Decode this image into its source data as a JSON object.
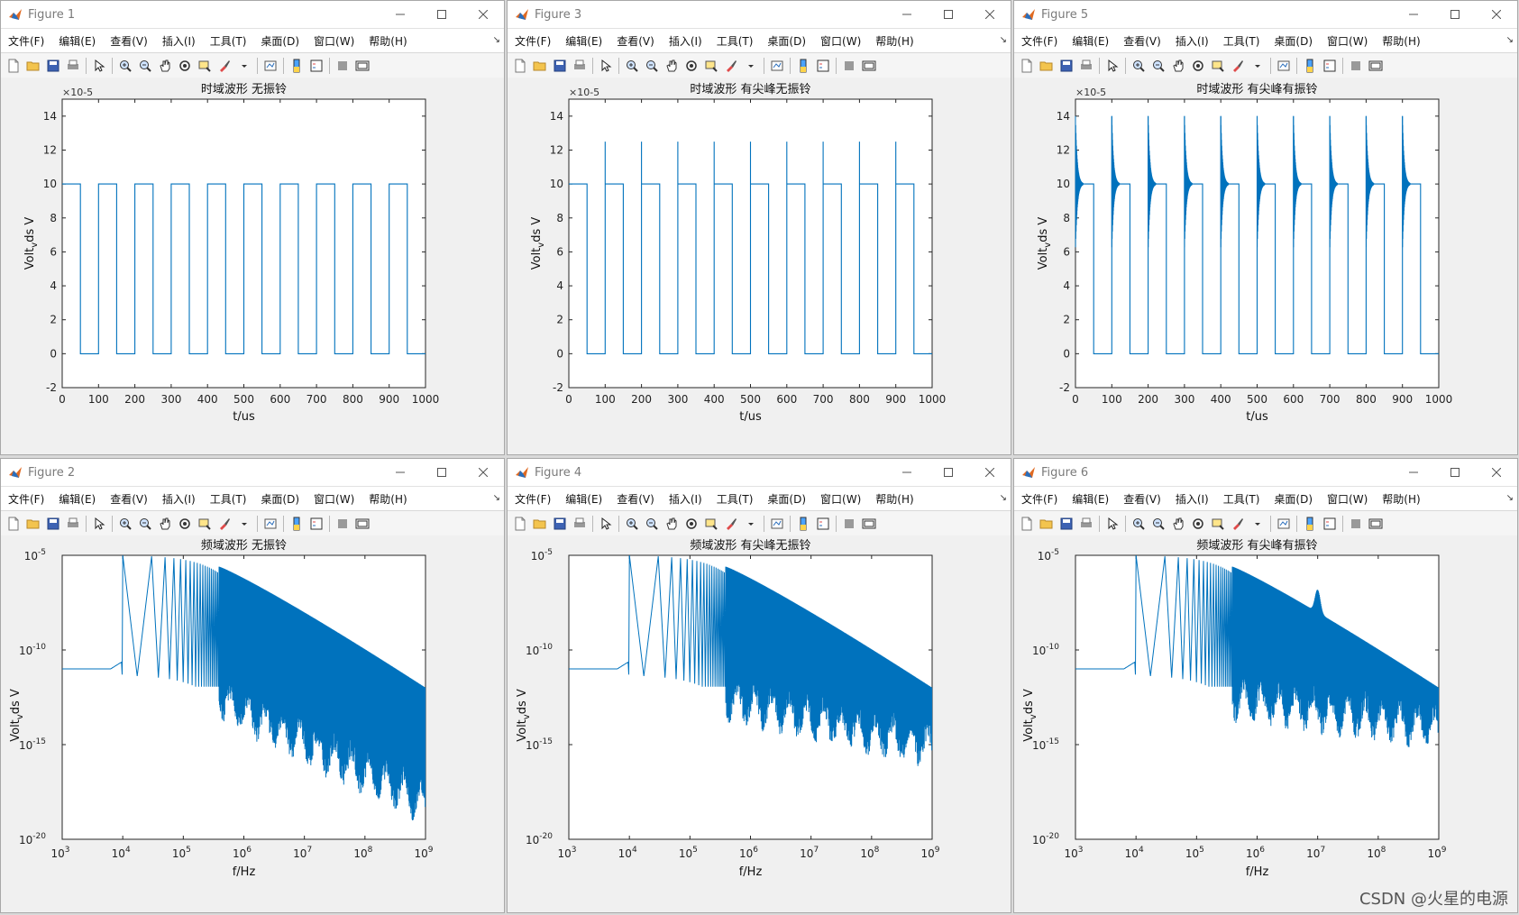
{
  "menu": [
    "文件(F)",
    "编辑(E)",
    "查看(V)",
    "插入(I)",
    "工具(T)",
    "桌面(D)",
    "窗口(W)",
    "帮助(H)"
  ],
  "windows": [
    {
      "title": "Figure 1",
      "chart_data": {
        "type": "line",
        "title": "时域波形 无振铃",
        "xlabel": "t/us",
        "ylabel_main": "Volt",
        "ylabel_sub": "v",
        "ylabel_tail": "ds V",
        "y_exponent": "×10-5",
        "xlim": [
          0,
          1000
        ],
        "ylim": [
          -2,
          15
        ],
        "xticks": [
          "0",
          "100",
          "200",
          "300",
          "400",
          "500",
          "600",
          "700",
          "800",
          "900",
          "1000"
        ],
        "yticks": [
          "-2",
          "0",
          "2",
          "4",
          "6",
          "8",
          "10",
          "12",
          "14"
        ],
        "y_scale": "linear",
        "series": [
          {
            "high": 10,
            "low": 0,
            "period": 100,
            "duty": 0.5,
            "first_rise": 0,
            "spike_peak": null,
            "ringing": false
          }
        ]
      }
    },
    {
      "title": "Figure 3",
      "chart_data": {
        "type": "line",
        "title": "时域波形 有尖峰无振铃",
        "xlabel": "t/us",
        "ylabel_main": "Volt",
        "ylabel_sub": "v",
        "ylabel_tail": "ds V",
        "y_exponent": "×10-5",
        "xlim": [
          0,
          1000
        ],
        "ylim": [
          -2,
          15
        ],
        "xticks": [
          "0",
          "100",
          "200",
          "300",
          "400",
          "500",
          "600",
          "700",
          "800",
          "900",
          "1000"
        ],
        "yticks": [
          "-2",
          "0",
          "2",
          "4",
          "6",
          "8",
          "10",
          "12",
          "14"
        ],
        "y_scale": "linear",
        "series": [
          {
            "high": 10,
            "low": 0,
            "period": 100,
            "duty": 0.5,
            "first_rise": 0,
            "spike_peak": 12.5,
            "ringing": false
          }
        ]
      }
    },
    {
      "title": "Figure 5",
      "chart_data": {
        "type": "line",
        "title": "时域波形 有尖峰有振铃",
        "xlabel": "t/us",
        "ylabel_main": "Volt",
        "ylabel_sub": "v",
        "ylabel_tail": "ds V",
        "y_exponent": "×10-5",
        "xlim": [
          0,
          1000
        ],
        "ylim": [
          -2,
          15
        ],
        "xticks": [
          "0",
          "100",
          "200",
          "300",
          "400",
          "500",
          "600",
          "700",
          "800",
          "900",
          "1000"
        ],
        "yticks": [
          "-2",
          "0",
          "2",
          "4",
          "6",
          "8",
          "10",
          "12",
          "14"
        ],
        "y_scale": "linear",
        "series": [
          {
            "high": 10,
            "low": 0,
            "period": 100,
            "duty": 0.5,
            "first_rise": 0,
            "spike_peak": 14,
            "ringing": true
          }
        ]
      }
    },
    {
      "title": "Figure 2",
      "chart_data": {
        "type": "line",
        "title": "频域波形 无振铃",
        "xlabel": "f/Hz",
        "ylabel_main": "Volt",
        "ylabel_sub": "v",
        "ylabel_tail": "ds V",
        "x_scale": "log",
        "y_scale": "log",
        "xlim": [
          1000,
          1000000000
        ],
        "ylim": [
          1e-20,
          1e-05
        ],
        "xticks": [
          "3",
          "4",
          "5",
          "6",
          "7",
          "8",
          "9"
        ],
        "yticks": [
          "-20",
          "-15",
          "-10",
          "-5"
        ],
        "tick_base": "10",
        "series": [
          {
            "baseline": 1e-11,
            "fundamental_hz": 10000,
            "peak": 1e-05,
            "envelope_top_end": 1e-12,
            "floor_end": 1e-18,
            "resonance_hz": null
          }
        ]
      }
    },
    {
      "title": "Figure 4",
      "chart_data": {
        "type": "line",
        "title": "频域波形 有尖峰无振铃",
        "xlabel": "f/Hz",
        "ylabel_main": "Volt",
        "ylabel_sub": "v",
        "ylabel_tail": "ds V",
        "x_scale": "log",
        "y_scale": "log",
        "xlim": [
          1000,
          1000000000
        ],
        "ylim": [
          1e-20,
          1e-05
        ],
        "xticks": [
          "3",
          "4",
          "5",
          "6",
          "7",
          "8",
          "9"
        ],
        "yticks": [
          "-20",
          "-15",
          "-10",
          "-5"
        ],
        "tick_base": "10",
        "series": [
          {
            "baseline": 1e-11,
            "fundamental_hz": 10000,
            "peak": 1e-05,
            "envelope_top_end": 1e-12,
            "floor_end": 1e-15,
            "resonance_hz": null
          }
        ]
      }
    },
    {
      "title": "Figure 6",
      "chart_data": {
        "type": "line",
        "title": "频域波形 有尖峰有振铃",
        "xlabel": "f/Hz",
        "ylabel_main": "Volt",
        "ylabel_sub": "v",
        "ylabel_tail": "ds V",
        "x_scale": "log",
        "y_scale": "log",
        "xlim": [
          1000,
          1000000000
        ],
        "ylim": [
          1e-20,
          1e-05
        ],
        "xticks": [
          "3",
          "4",
          "5",
          "6",
          "7",
          "8",
          "9"
        ],
        "yticks": [
          "-20",
          "-15",
          "-10",
          "-5"
        ],
        "tick_base": "10",
        "series": [
          {
            "baseline": 1e-11,
            "fundamental_hz": 10000,
            "peak": 1e-05,
            "envelope_top_end": 1e-12,
            "floor_end": 1e-14,
            "resonance_hz": 10000000
          }
        ]
      }
    }
  ],
  "watermark": "CSDN @火星的电源",
  "colors": {
    "line": "#0072bd",
    "axes": "#262626",
    "grid_bg": "#ffffff",
    "window_bg": "#f0f0f0"
  }
}
